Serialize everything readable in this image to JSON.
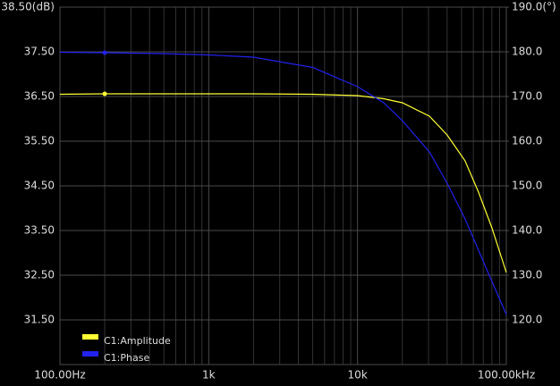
{
  "chart_data": {
    "type": "line",
    "x_scale": "log",
    "xlim": [
      100,
      100000
    ],
    "xticks": [
      {
        "value": 100,
        "label": "100.00Hz"
      },
      {
        "value": 1000,
        "label": "1k"
      },
      {
        "value": 10000,
        "label": "10k"
      },
      {
        "value": 100000,
        "label": "100.00kHz"
      }
    ],
    "ylim": [
      30.5,
      38.5
    ],
    "yticks": [
      {
        "value": 31.5,
        "label": "31.50"
      },
      {
        "value": 32.5,
        "label": "32.50"
      },
      {
        "value": 33.5,
        "label": "33.50"
      },
      {
        "value": 34.5,
        "label": "34.50"
      },
      {
        "value": 35.5,
        "label": "35.50"
      },
      {
        "value": 36.5,
        "label": "36.50"
      },
      {
        "value": 37.5,
        "label": "37.50"
      },
      {
        "value": 38.5,
        "label": "38.50(dB)"
      }
    ],
    "y2lim": [
      110,
      190
    ],
    "y2ticks": [
      {
        "value": 120,
        "label": "120.0"
      },
      {
        "value": 130,
        "label": "130.0"
      },
      {
        "value": 140,
        "label": "140.0"
      },
      {
        "value": 150,
        "label": "150.0"
      },
      {
        "value": 160,
        "label": "160.0"
      },
      {
        "value": 170,
        "label": "170.0"
      },
      {
        "value": 180,
        "label": "180.0"
      },
      {
        "value": 190,
        "label": "190.0(°)"
      }
    ],
    "grid": true,
    "minor_grid": true,
    "legend": "bottom-left",
    "x": [
      100,
      200,
      500,
      1000,
      2000,
      5000,
      10000,
      15000,
      20000,
      30400,
      40000,
      52800,
      65000,
      80000,
      100000
    ],
    "series": [
      {
        "name": "C1:Amplitude",
        "color": "#ffff33",
        "values": [
          36.55,
          36.56,
          36.56,
          36.56,
          36.56,
          36.55,
          36.52,
          36.45,
          36.36,
          36.06,
          35.64,
          35.06,
          34.36,
          33.56,
          32.56
        ],
        "marker": {
          "x": 200,
          "value": 36.56
        }
      },
      {
        "name": "C1:Phase",
        "color": "#2222ee",
        "axis": "y2",
        "values": [
          179.9,
          179.8,
          179.6,
          179.3,
          178.8,
          176.5,
          172.2,
          168.6,
          164.6,
          157.6,
          150.6,
          142.6,
          135.6,
          128.6,
          121.2
        ],
        "marker": {
          "x": 200,
          "value": 179.8
        }
      }
    ]
  }
}
